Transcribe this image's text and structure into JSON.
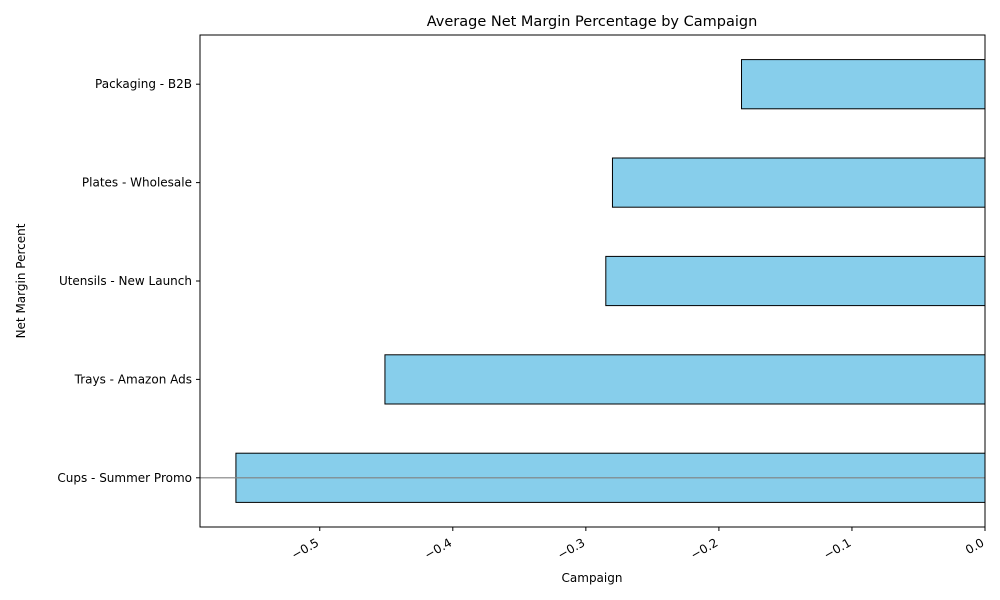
{
  "chart_data": {
    "type": "bar",
    "orientation": "horizontal",
    "title": "Average Net Margin Percentage by Campaign",
    "xlabel": "Campaign",
    "ylabel": "Net Margin Percent",
    "categories": [
      "Cups - Summer Promo",
      "Trays - Amazon Ads",
      "Utensils - New Launch",
      "Plates - Wholesale",
      "Packaging - B2B"
    ],
    "values": [
      -0.563,
      -0.451,
      -0.285,
      -0.28,
      -0.183
    ],
    "xlim": [
      -0.59,
      0.0
    ],
    "xticks": [
      -0.5,
      -0.4,
      -0.3,
      -0.2,
      -0.1,
      0.0
    ],
    "xtick_labels": [
      "−0.5",
      "−0.4",
      "−0.3",
      "−0.2",
      "−0.1",
      "0.0"
    ],
    "bar_color": "#87CEEB",
    "bar_edge_color": "#000000",
    "reference_line": {
      "y_category": "Cups - Summer Promo",
      "color": "#808080"
    },
    "grid": false
  }
}
